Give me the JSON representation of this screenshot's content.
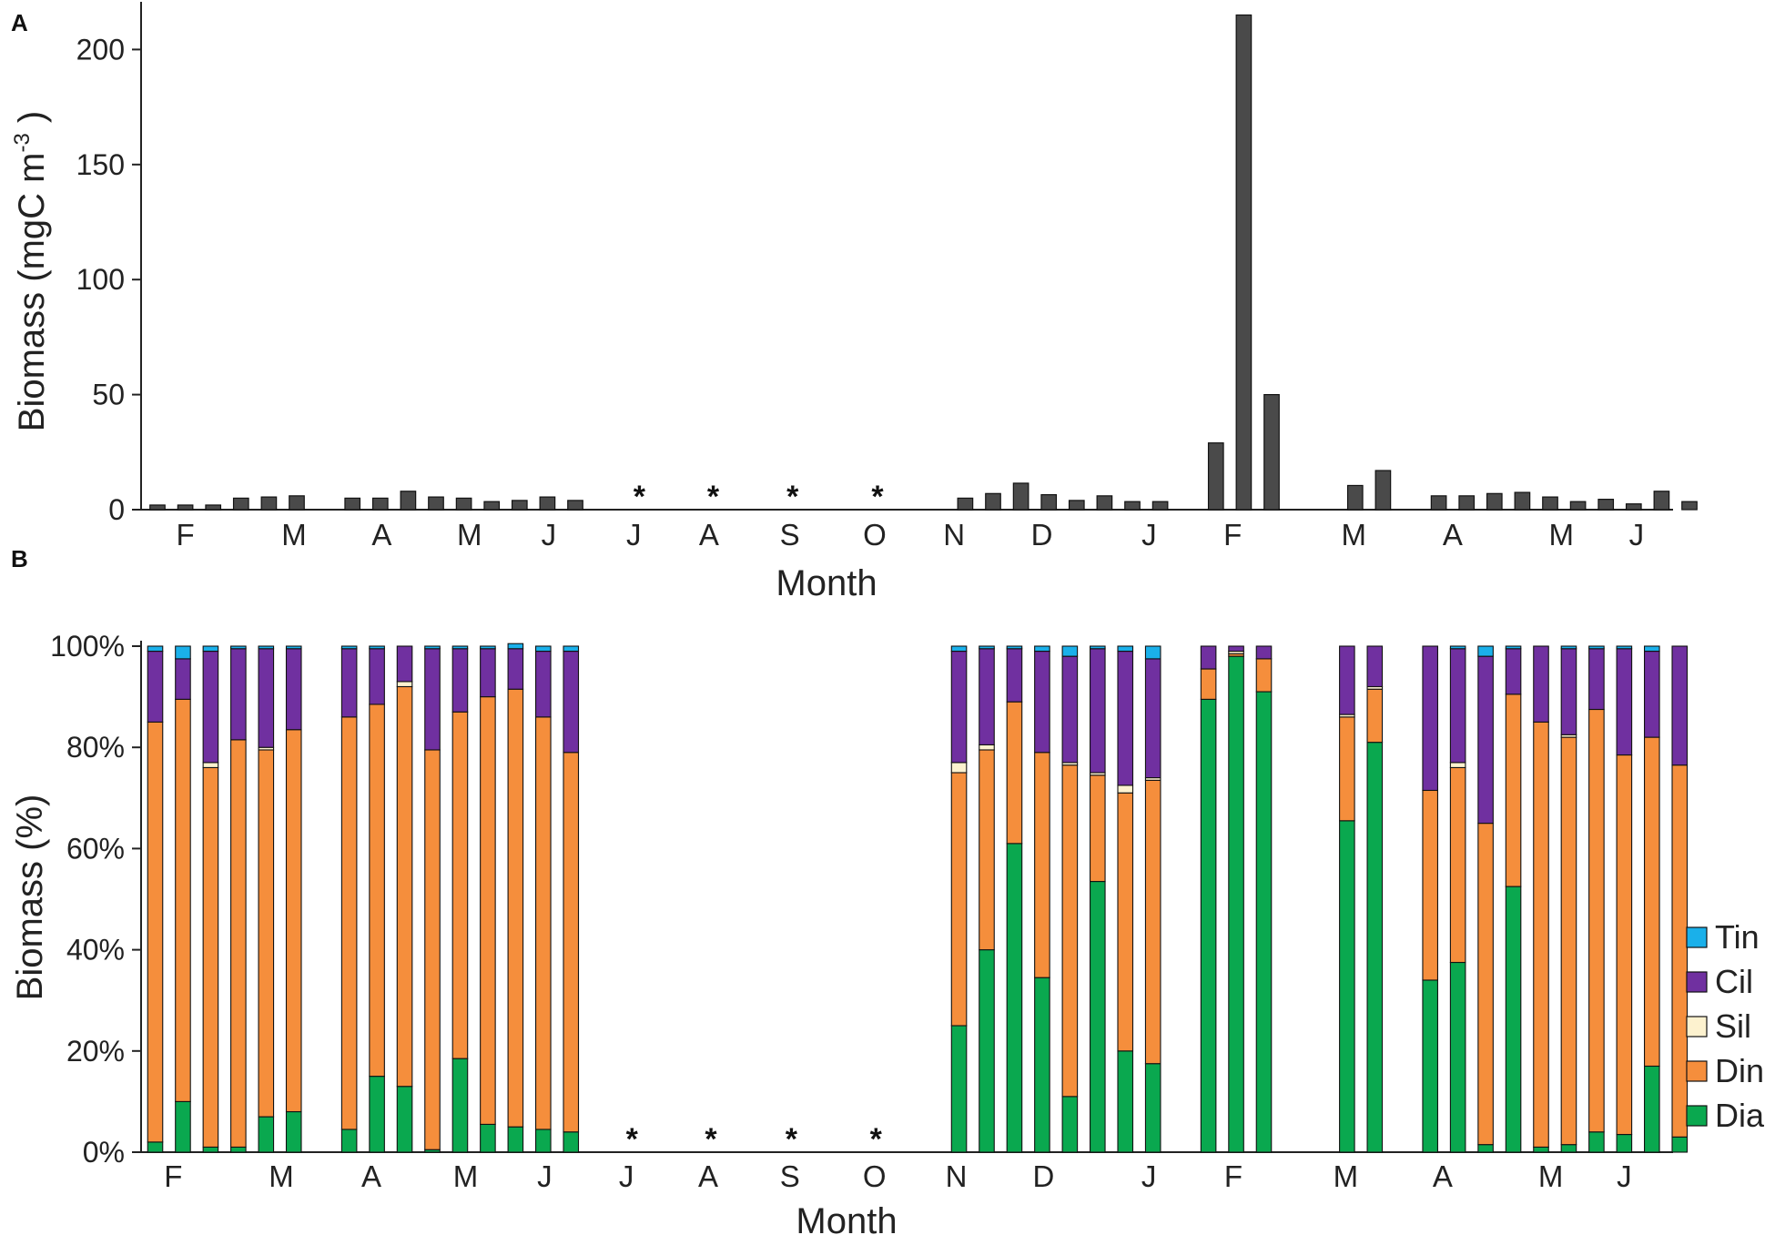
{
  "chart_data": [
    {
      "panel": "A",
      "type": "bar",
      "xlabel": "Month",
      "ylabel_main": "Biomass (mgC m",
      "ylabel_sup": "-3",
      "ylabel_close": " )",
      "ylim": [
        0,
        220
      ],
      "yticks": [
        0,
        50,
        100,
        150,
        200
      ],
      "color": "#4a4a4a",
      "values": [
        2,
        2,
        2,
        5,
        5.5,
        6,
        null,
        5,
        5,
        8,
        5.5,
        5,
        3.5,
        4,
        5.5,
        4,
        null,
        null,
        null,
        null,
        null,
        null,
        null,
        null,
        null,
        null,
        null,
        null,
        null,
        5,
        7,
        11.5,
        6.5,
        4,
        6,
        3.5,
        3.5,
        null,
        29,
        215,
        50,
        null,
        null,
        10.5,
        17,
        null,
        6,
        6,
        7,
        7.5,
        5.5,
        3.5,
        4.5,
        2.5,
        8,
        3.5
      ],
      "months": [
        {
          "label": "F",
          "pos": 1
        },
        {
          "label": "M",
          "pos": 4.9
        },
        {
          "label": "A",
          "pos": 8.05
        },
        {
          "label": "M",
          "pos": 11.2
        },
        {
          "label": "J",
          "pos": 14.05
        },
        {
          "label": "J",
          "pos": 17.1
        },
        {
          "label": "A",
          "pos": 19.8
        },
        {
          "label": "S",
          "pos": 22.7
        },
        {
          "label": "O",
          "pos": 25.75
        },
        {
          "label": "N",
          "pos": 28.6
        },
        {
          "label": "D",
          "pos": 31.75
        },
        {
          "label": "J",
          "pos": 35.6
        },
        {
          "label": "F",
          "pos": 38.6
        },
        {
          "label": "M",
          "pos": 42.95
        },
        {
          "label": "A",
          "pos": 46.5
        },
        {
          "label": "M",
          "pos": 50.4
        },
        {
          "label": "J",
          "pos": 53.1
        }
      ],
      "missing_markers": [
        {
          "label": "*",
          "pos": 17.3
        },
        {
          "label": "*",
          "pos": 19.95
        },
        {
          "label": "*",
          "pos": 22.8
        },
        {
          "label": "*",
          "pos": 25.85
        }
      ]
    },
    {
      "panel": "B",
      "type": "stacked-bar",
      "xlabel": "Month",
      "ylabel": "Biomass (%)",
      "ylim": [
        0,
        100
      ],
      "yticks": [
        "0%",
        "20%",
        "40%",
        "60%",
        "80%",
        "100%"
      ],
      "legend_position": "right",
      "series": [
        {
          "name": "Dia",
          "color": "#0aa84f",
          "values": [
            2,
            10,
            1,
            1,
            7,
            8,
            null,
            4.5,
            15,
            13,
            0.5,
            18.5,
            5.5,
            5,
            4.5,
            4,
            null,
            null,
            null,
            null,
            null,
            null,
            null,
            null,
            null,
            null,
            null,
            null,
            null,
            25,
            40,
            61,
            34.5,
            11,
            53.5,
            20,
            17.5,
            null,
            89.5,
            98,
            91,
            null,
            null,
            65.5,
            81,
            null,
            34,
            37.5,
            1.5,
            52.5,
            1,
            1.5,
            4,
            3.5,
            17,
            3
          ]
        },
        {
          "name": "Din",
          "color": "#f58e3c",
          "values": [
            83,
            79.5,
            75,
            80.5,
            72.5,
            75.5,
            null,
            81.5,
            73.5,
            79,
            79,
            68.5,
            84.5,
            86.5,
            81.5,
            75,
            null,
            null,
            null,
            null,
            null,
            null,
            null,
            null,
            null,
            null,
            null,
            null,
            null,
            50,
            39.5,
            28,
            44.5,
            65.5,
            21,
            51,
            56,
            null,
            6,
            0.5,
            6.5,
            null,
            null,
            20.5,
            10.5,
            null,
            37.5,
            38.5,
            63.5,
            38,
            84,
            80.5,
            83.5,
            75,
            65,
            73.5
          ]
        },
        {
          "name": "Sil",
          "color": "#fdf2cf",
          "values": [
            0,
            0,
            1,
            0,
            0.5,
            0,
            null,
            0,
            0,
            1,
            0,
            0,
            0,
            0,
            0,
            0,
            null,
            null,
            null,
            null,
            null,
            null,
            null,
            null,
            null,
            null,
            null,
            null,
            null,
            2,
            1,
            0,
            0,
            0.5,
            0.5,
            1.5,
            0.5,
            null,
            0,
            0.5,
            0,
            null,
            null,
            0.5,
            0.5,
            null,
            0,
            1,
            0,
            0,
            0,
            0.5,
            0,
            0,
            0,
            0
          ]
        },
        {
          "name": "Cil",
          "color": "#7030a0",
          "values": [
            14,
            8,
            22,
            18,
            19.5,
            16,
            null,
            13.5,
            11,
            7,
            20,
            12.5,
            9.5,
            8,
            13,
            20,
            null,
            null,
            null,
            null,
            null,
            null,
            null,
            null,
            null,
            null,
            null,
            null,
            null,
            22,
            19,
            10.5,
            20,
            21,
            24.5,
            26.5,
            23.5,
            null,
            4.5,
            1,
            2.5,
            null,
            null,
            13.5,
            8,
            null,
            28.5,
            22.5,
            33,
            9,
            15,
            17,
            12,
            21,
            17,
            23.5
          ]
        },
        {
          "name": "Tin",
          "color": "#1ab0ea",
          "values": [
            1,
            2.5,
            1,
            0.5,
            0.5,
            0.5,
            null,
            0.5,
            0.5,
            0,
            0.5,
            0.5,
            0.5,
            1,
            1,
            1,
            null,
            null,
            null,
            null,
            null,
            null,
            null,
            null,
            null,
            null,
            null,
            null,
            null,
            1,
            0.5,
            0.5,
            1,
            2,
            0.5,
            1,
            2.5,
            null,
            0,
            0,
            0,
            null,
            null,
            0,
            0,
            null,
            0,
            0.5,
            2,
            0.5,
            0,
            0.5,
            0.5,
            0.5,
            1,
            0
          ]
        }
      ],
      "legend_order": [
        "Tin",
        "Cil",
        "Sil",
        "Din",
        "Dia"
      ],
      "months": [
        {
          "label": "F",
          "pos": 0.65
        },
        {
          "label": "M",
          "pos": 4.55
        },
        {
          "label": "A",
          "pos": 7.8
        },
        {
          "label": "M",
          "pos": 11.2
        },
        {
          "label": "J",
          "pos": 14.05
        },
        {
          "label": "J",
          "pos": 17.0
        },
        {
          "label": "A",
          "pos": 19.95
        },
        {
          "label": "S",
          "pos": 22.9
        },
        {
          "label": "O",
          "pos": 25.95
        },
        {
          "label": "N",
          "pos": 28.9
        },
        {
          "label": "D",
          "pos": 32.05
        },
        {
          "label": "J",
          "pos": 35.85
        },
        {
          "label": "F",
          "pos": 38.9
        },
        {
          "label": "M",
          "pos": 42.95
        },
        {
          "label": "A",
          "pos": 46.45
        },
        {
          "label": "M",
          "pos": 50.35
        },
        {
          "label": "J",
          "pos": 53.0
        }
      ],
      "missing_markers": [
        {
          "label": "*",
          "pos": 17.2
        },
        {
          "label": "*",
          "pos": 20.05
        },
        {
          "label": "*",
          "pos": 22.95
        },
        {
          "label": "*",
          "pos": 26.0
        }
      ]
    }
  ]
}
